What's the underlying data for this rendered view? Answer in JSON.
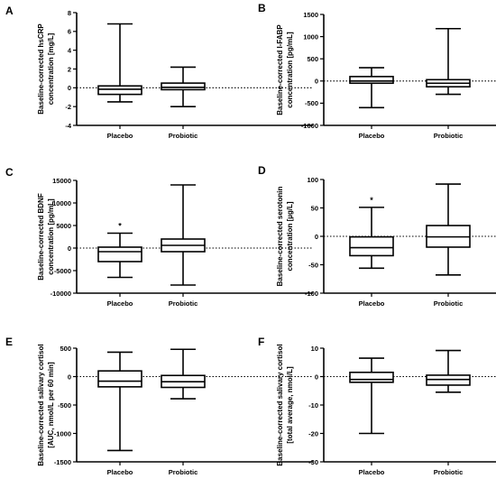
{
  "chart_data": [
    {
      "panel": "A",
      "type": "box",
      "ylabel": [
        "Baseline-corrected hsCRP",
        "concentration [mg/L]"
      ],
      "ylim": [
        -4,
        8
      ],
      "yticks": [
        -4,
        -2,
        0,
        2,
        4,
        6,
        8
      ],
      "categories": [
        "Placebo",
        "Probiotic"
      ],
      "boxes": [
        {
          "min": -1.5,
          "q1": -0.7,
          "median": -0.15,
          "q3": 0.2,
          "max": 6.8
        },
        {
          "min": -2.0,
          "q1": -0.2,
          "median": 0.05,
          "q3": 0.5,
          "max": 2.2
        }
      ],
      "reference_line": 0,
      "annotations": []
    },
    {
      "panel": "B",
      "type": "box",
      "ylabel": [
        "Baseline-corrected I-FABP",
        "concentration [pg/mL]"
      ],
      "ylim": [
        -1000,
        1500
      ],
      "yticks": [
        -1000,
        -500,
        0,
        500,
        1000,
        1500
      ],
      "categories": [
        "Placebo",
        "Probiotic"
      ],
      "boxes": [
        {
          "min": -600,
          "q1": -50,
          "median": 0,
          "q3": 100,
          "max": 300
        },
        {
          "min": -300,
          "q1": -130,
          "median": -50,
          "q3": 30,
          "max": 1180
        }
      ],
      "reference_line": 0,
      "annotations": []
    },
    {
      "panel": "C",
      "type": "box",
      "ylabel": [
        "Baseline-corrected BDNF",
        "concentration [pg/mL]"
      ],
      "ylim": [
        -10000,
        15000
      ],
      "yticks": [
        -10000,
        -5000,
        0,
        5000,
        10000,
        15000
      ],
      "categories": [
        "Placebo",
        "Probiotic"
      ],
      "boxes": [
        {
          "min": -6500,
          "q1": -3000,
          "median": -800,
          "q3": 200,
          "max": 3300
        },
        {
          "min": -8200,
          "q1": -800,
          "median": 600,
          "q3": 2000,
          "max": 14000
        }
      ],
      "reference_line": 0,
      "annotations": [
        {
          "category": "Placebo",
          "text": "*"
        }
      ]
    },
    {
      "panel": "D",
      "type": "box",
      "ylabel": [
        "Baseline-corrected serotonin",
        "concentration [µg/L]"
      ],
      "ylim": [
        -100,
        100
      ],
      "yticks": [
        -100,
        -50,
        0,
        50,
        100
      ],
      "categories": [
        "Placebo",
        "Probiotic"
      ],
      "boxes": [
        {
          "min": -56,
          "q1": -34,
          "median": -20,
          "q3": -1,
          "max": 51
        },
        {
          "min": -68,
          "q1": -19,
          "median": -1,
          "q3": 19,
          "max": 92
        }
      ],
      "reference_line": 0,
      "annotations": [
        {
          "category": "Placebo",
          "text": "*"
        }
      ]
    },
    {
      "panel": "E",
      "type": "box",
      "ylabel": [
        "Baseline-corrected salivary cortisol",
        "[AUC, nmol/L per 60 min]"
      ],
      "ylim": [
        -1500,
        500
      ],
      "yticks": [
        -1500,
        -1000,
        -500,
        0,
        500
      ],
      "categories": [
        "Placebo",
        "Probiotic"
      ],
      "boxes": [
        {
          "min": -1300,
          "q1": -180,
          "median": -80,
          "q3": 100,
          "max": 430
        },
        {
          "min": -390,
          "q1": -190,
          "median": -90,
          "q3": 20,
          "max": 480
        }
      ],
      "reference_line": 0,
      "annotations": []
    },
    {
      "panel": "F",
      "type": "box",
      "ylabel": [
        "Baseline-corrected salivary cortisol",
        "[total average, nmol/L]"
      ],
      "ylim": [
        -30,
        10
      ],
      "yticks": [
        -30,
        -20,
        -10,
        0,
        10
      ],
      "categories": [
        "Placebo",
        "Probiotic"
      ],
      "boxes": [
        {
          "min": -20,
          "q1": -2,
          "median": -1,
          "q3": 1.5,
          "max": 6.5
        },
        {
          "min": -5.5,
          "q1": -3,
          "median": -1,
          "q3": 0.5,
          "max": 9.2
        }
      ],
      "reference_line": 0,
      "annotations": []
    }
  ]
}
